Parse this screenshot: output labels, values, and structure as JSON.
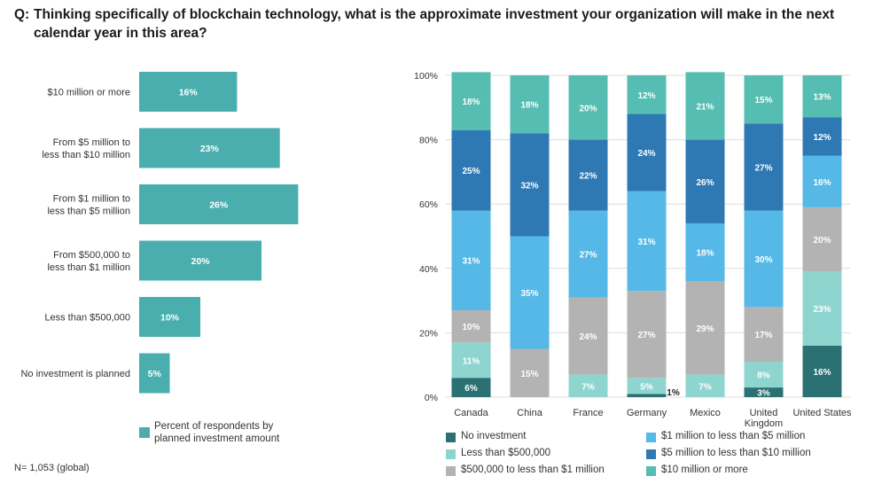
{
  "title": {
    "prefix": "Q:",
    "text": "Thinking specifically of blockchain technology, what is the approximate investment your organization will make in the next calendar year in this area?"
  },
  "footnote": "N= 1,053 (global)",
  "colors": {
    "left_bar": "#4aaeae",
    "no_investment": "#2b7073",
    "lt_500k": "#8fd5cf",
    "500k_1m": "#b3b3b3",
    "1m_5m": "#55b8e6",
    "5m_10m": "#2e79b4",
    "10m_plus": "#55bdb1",
    "axis": "#bbbbbb",
    "grid": "#dddddd"
  },
  "chart_data": [
    {
      "type": "bar",
      "orientation": "horizontal",
      "categories": [
        "$10 million or more",
        "From $5 million to less than $10 million",
        "From $1 million to less than $5 million",
        "From $500,000 to less than $1 million",
        "Less than $500,000",
        "No investment is planned"
      ],
      "category_lines": [
        [
          "$10 million or more"
        ],
        [
          "From $5 million to",
          "less than $10 million"
        ],
        [
          "From $1 million to",
          "less than $5 million"
        ],
        [
          "From $500,000 to",
          "less than $1 million"
        ],
        [
          "Less than $500,000"
        ],
        [
          "No investment is planned"
        ]
      ],
      "values": [
        16,
        23,
        26,
        20,
        10,
        5
      ],
      "value_labels": [
        "16%",
        "23%",
        "26%",
        "20%",
        "10%",
        "5%"
      ],
      "legend": [
        "Percent of respondents by planned investment amount"
      ],
      "legend_lines": [
        "Percent of respondents by",
        "planned investment amount"
      ]
    },
    {
      "type": "bar",
      "stacked": true,
      "categories": [
        "Canada",
        "China",
        "France",
        "Germany",
        "Mexico",
        "United Kingdom",
        "United States"
      ],
      "category_lines": [
        [
          "Canada"
        ],
        [
          "China"
        ],
        [
          "France"
        ],
        [
          "Germany"
        ],
        [
          "Mexico"
        ],
        [
          "United",
          "Kingdom"
        ],
        [
          "United States"
        ]
      ],
      "ylim": [
        0,
        100
      ],
      "yticks": [
        "0%",
        "20%",
        "40%",
        "60%",
        "80%",
        "100%"
      ],
      "legend_placement": "bottom",
      "series": [
        {
          "name": "No investment",
          "color_key": "no_investment",
          "values": [
            6,
            0,
            0,
            1,
            0,
            3,
            16
          ],
          "labels": [
            "6%",
            "",
            "",
            "1%",
            "",
            "3%",
            "16%"
          ]
        },
        {
          "name": "Less than $500,000",
          "color_key": "lt_500k",
          "values": [
            11,
            0,
            7,
            5,
            7,
            8,
            23
          ],
          "labels": [
            "11%",
            "",
            "7%",
            "5%",
            "7%",
            "8%",
            "23%"
          ]
        },
        {
          "name": "$500,000 to less than $1 million",
          "color_key": "500k_1m",
          "values": [
            10,
            15,
            24,
            27,
            29,
            17,
            20
          ],
          "labels": [
            "10%",
            "15%",
            "24%",
            "27%",
            "29%",
            "17%",
            "20%"
          ]
        },
        {
          "name": "$1 million to less than $5 million",
          "color_key": "1m_5m",
          "values": [
            31,
            35,
            27,
            31,
            18,
            30,
            16
          ],
          "labels": [
            "31%",
            "35%",
            "27%",
            "31%",
            "18%",
            "30%",
            "16%"
          ]
        },
        {
          "name": "$5 million to less than $10 million",
          "color_key": "5m_10m",
          "values": [
            25,
            32,
            22,
            24,
            26,
            27,
            12
          ],
          "labels": [
            "25%",
            "32%",
            "22%",
            "24%",
            "26%",
            "27%",
            "12%"
          ]
        },
        {
          "name": "$10 million or more",
          "color_key": "10m_plus",
          "values": [
            18,
            18,
            20,
            12,
            21,
            15,
            13
          ],
          "labels": [
            "18%",
            "18%",
            "20%",
            "12%",
            "21%",
            "15%",
            "13%"
          ]
        }
      ]
    }
  ]
}
